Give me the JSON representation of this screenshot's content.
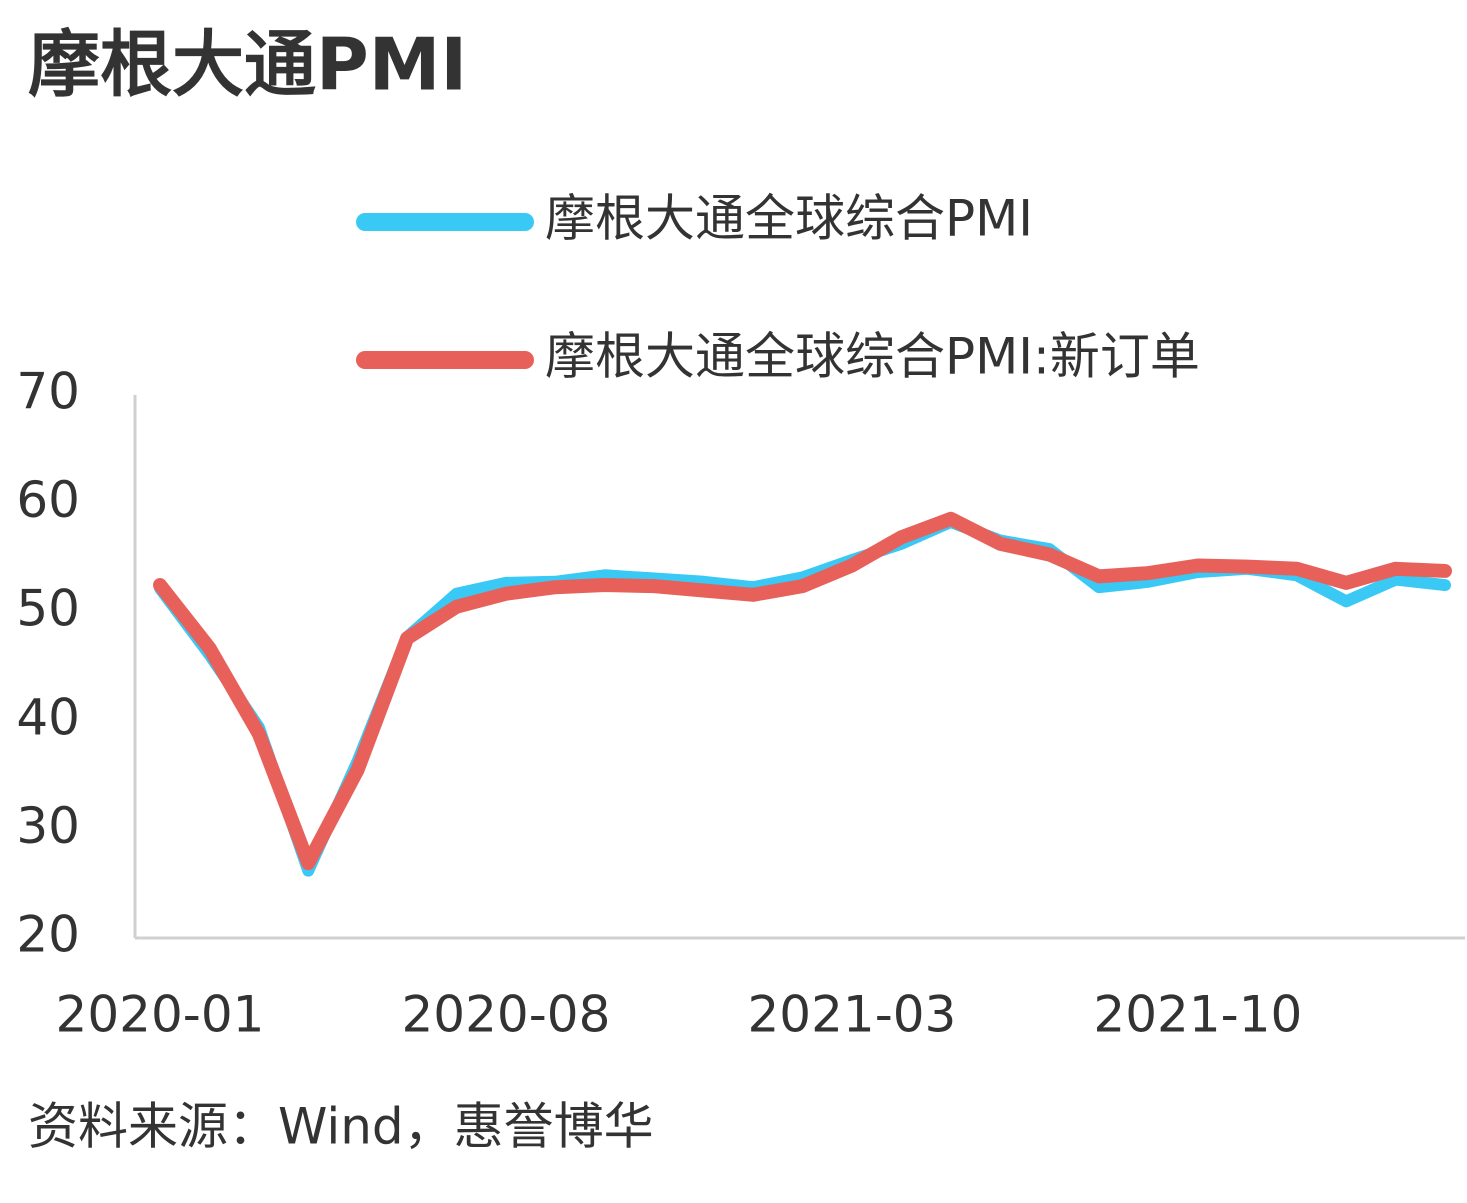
{
  "chart_data": {
    "type": "line",
    "title": "摩根大通PMI",
    "source": "资料来源：Wind，惠誉博华",
    "categories": [
      "2020-01",
      null,
      null,
      null,
      null,
      null,
      null,
      "2020-08",
      null,
      null,
      null,
      null,
      null,
      null,
      "2021-03",
      null,
      null,
      null,
      null,
      null,
      null,
      "2021-10",
      null,
      null,
      null,
      null,
      null
    ],
    "series": [
      {
        "name": "摩根大通全球综合PMI",
        "color": "#3ac8f5",
        "values": [
          52.2,
          46.1,
          39.4,
          26.2,
          36.3,
          47.7,
          51.7,
          52.7,
          52.8,
          53.4,
          53.1,
          52.8,
          52.3,
          53.2,
          54.8,
          56.3,
          58.3,
          56.6,
          55.8,
          52.3,
          52.8,
          53.7,
          54.0,
          53.4,
          51.0,
          53.0,
          52.5
        ]
      },
      {
        "name": "摩根大通全球综合PMI:新订单",
        "color": "#e8605a",
        "values": [
          52.5,
          46.7,
          38.8,
          26.9,
          35.5,
          47.6,
          50.5,
          51.7,
          52.3,
          52.5,
          52.4,
          52.0,
          51.6,
          52.4,
          54.3,
          56.9,
          58.6,
          56.3,
          55.3,
          53.3,
          53.6,
          54.3,
          54.2,
          54.0,
          52.7,
          54.0,
          53.8
        ]
      }
    ],
    "ylim": [
      20,
      70
    ],
    "yticks": [
      20,
      30,
      40,
      50,
      60,
      70
    ],
    "grid": false
  }
}
